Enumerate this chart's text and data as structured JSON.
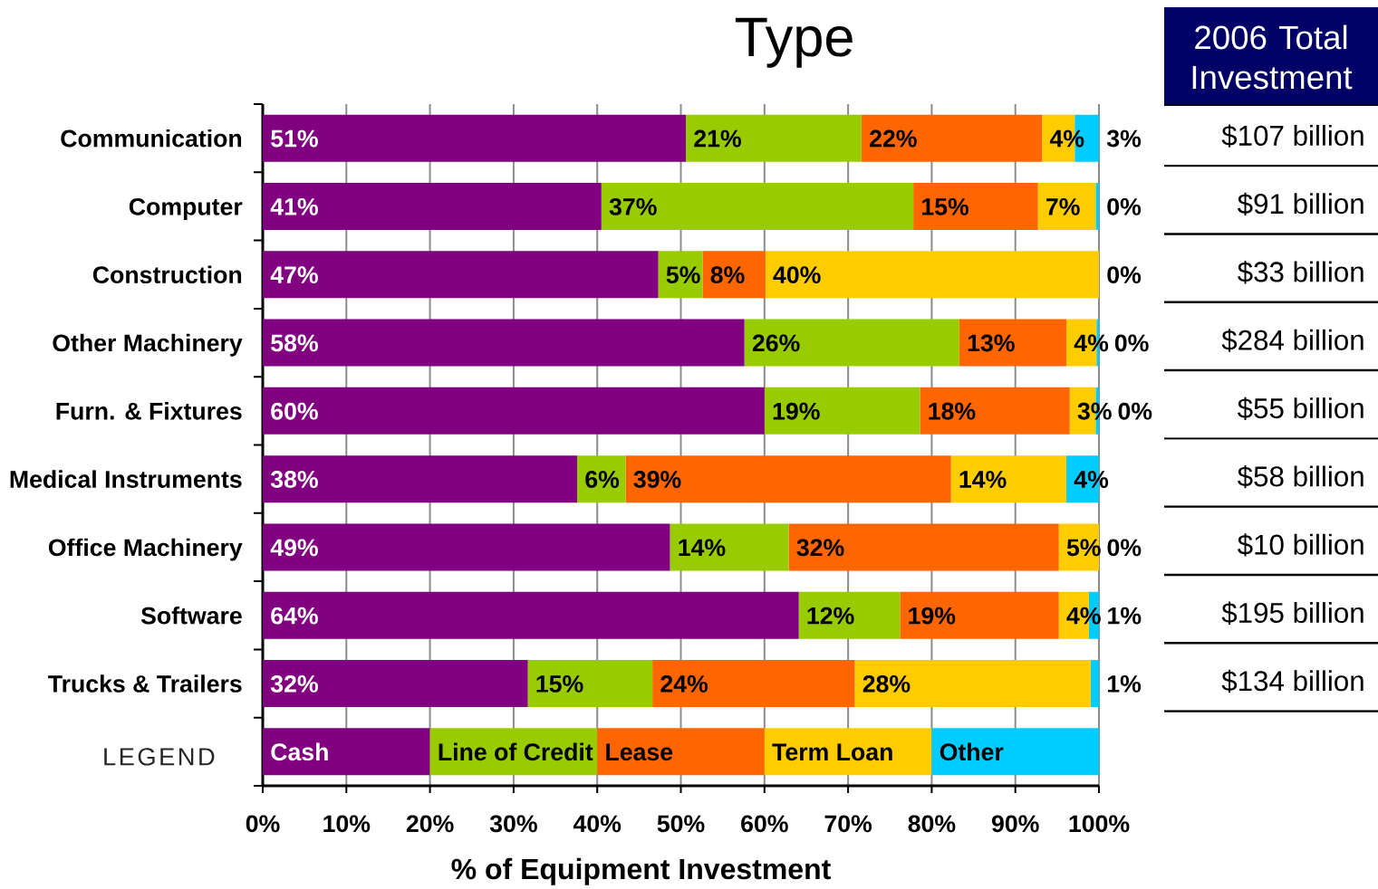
{
  "chart_data": [
    {
      "type": "bar",
      "orientation": "horizontal",
      "stacked": true,
      "title": "Type",
      "xlabel": "% of Equipment Investment",
      "legend_title": "LEGEND",
      "categories": [
        "Communication",
        "Computer",
        "Construction",
        "Other Machinery",
        "Furn. & Fixtures",
        "Medical Instruments",
        "Office Machinery",
        "Software",
        "Trucks & Trailers"
      ],
      "series": [
        {
          "name": "Cash",
          "color": "#800080",
          "values": [
            50.6,
            40.5,
            47.3,
            57.6,
            60.0,
            37.6,
            48.7,
            64.1,
            31.7
          ],
          "value_labels": [
            "51%",
            "41%",
            "47%",
            "58%",
            "60%",
            "38%",
            "49%",
            "64%",
            "32%"
          ]
        },
        {
          "name": "Line of Credit",
          "color": "#99cc00",
          "values": [
            21.0,
            37.3,
            5.3,
            25.7,
            18.6,
            5.8,
            14.2,
            12.1,
            14.9
          ],
          "value_labels": [
            "21%",
            "37%",
            "5%",
            "26%",
            "19%",
            "6%",
            "14%",
            "12%",
            "15%"
          ]
        },
        {
          "name": "Lease",
          "color": "#ff6600",
          "values": [
            21.6,
            14.9,
            7.5,
            12.8,
            17.9,
            38.9,
            32.3,
            19.0,
            24.2
          ],
          "value_labels": [
            "22%",
            "15%",
            "8%",
            "13%",
            "18%",
            "39%",
            "32%",
            "19%",
            "24%"
          ]
        },
        {
          "name": "Term Loan",
          "color": "#ffcc00",
          "values": [
            3.9,
            6.9,
            39.9,
            3.6,
            3.1,
            13.8,
            4.8,
            3.6,
            28.2
          ],
          "value_labels": [
            "4%",
            "7%",
            "40%",
            "4%",
            "3%",
            "14%",
            "5%",
            "4%",
            "28%"
          ]
        },
        {
          "name": "Other",
          "color": "#00ccff",
          "values": [
            2.9,
            0.4,
            0,
            0.3,
            0.4,
            3.9,
            0,
            1.2,
            1.0
          ],
          "value_labels": [
            "3%",
            "0%",
            "0%",
            "0%",
            "0%",
            "4%",
            "0%",
            "1%",
            "1%"
          ]
        }
      ],
      "xlim": [
        0,
        100
      ],
      "xticks": [
        {
          "value": 0,
          "label": "0%"
        },
        {
          "value": 10,
          "label": "10%"
        },
        {
          "value": 20,
          "label": "20%"
        },
        {
          "value": 30,
          "label": "30%"
        },
        {
          "value": 40,
          "label": "40%"
        },
        {
          "value": 50,
          "label": "50%"
        },
        {
          "value": 60,
          "label": "60%"
        },
        {
          "value": 70,
          "label": "70%"
        },
        {
          "value": 80,
          "label": "80%"
        },
        {
          "value": 90,
          "label": "90%"
        },
        {
          "value": 100,
          "label": "100%"
        }
      ],
      "grid": "x",
      "legend": "bottom"
    },
    {
      "type": "other",
      "title": "2006 Total Investment",
      "annotations": [
        "$107 billion",
        "$91 billion",
        "$33 billion",
        "$284 billion",
        "$55 billion",
        "$58 billion",
        "$10 billion",
        "$195 billion",
        "$134 billion"
      ]
    }
  ]
}
